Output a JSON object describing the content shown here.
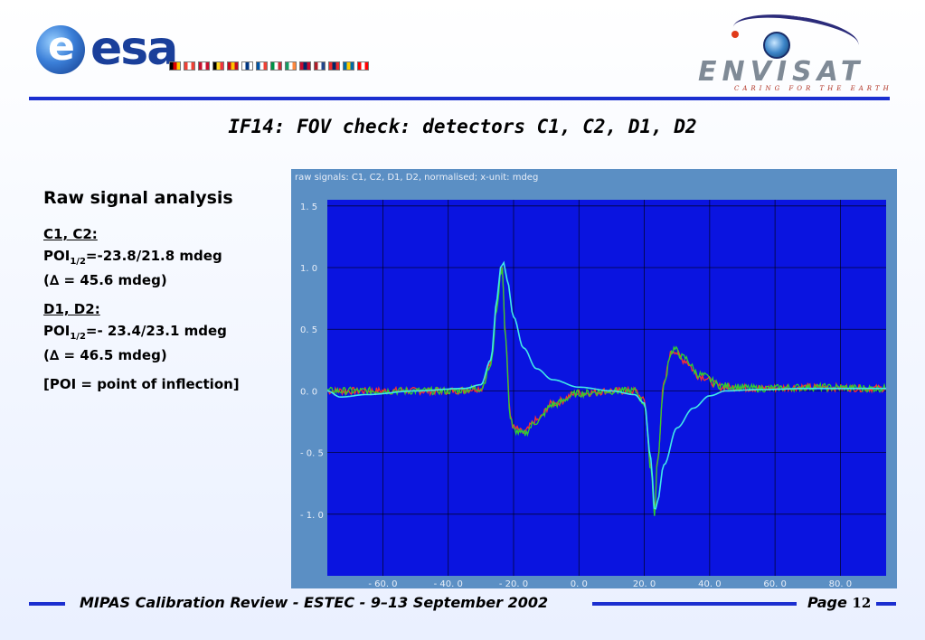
{
  "header": {
    "esa_logo_text": "esa",
    "esa_logo_letter": "e",
    "envisat_logo_text": "ENVISAT",
    "envisat_tagline": "CARING FOR THE EARTH",
    "flag_colors": [
      [
        "#000000",
        "#dd0000",
        "#ffce00"
      ],
      [
        "#ef4135",
        "#ffffff",
        "#ef4135"
      ],
      [
        "#c8102e",
        "#ffffff",
        "#c8102e"
      ],
      [
        "#000000",
        "#fdda24",
        "#ef3340"
      ],
      [
        "#c60b1e",
        "#ffc400",
        "#c60b1e"
      ],
      [
        "#ffffff",
        "#003580",
        "#ffffff"
      ],
      [
        "#0055a4",
        "#ffffff",
        "#ef4135"
      ],
      [
        "#009246",
        "#ffffff",
        "#ce2b37"
      ],
      [
        "#169b62",
        "#ffffff",
        "#ff883e"
      ],
      [
        "#c60c30",
        "#002868",
        "#c60c30"
      ],
      [
        "#ae1c28",
        "#ffffff",
        "#21468b"
      ],
      [
        "#ef2b2d",
        "#002868",
        "#ef2b2d"
      ],
      [
        "#006aa7",
        "#fecc00",
        "#006aa7"
      ],
      [
        "#ff0000",
        "#ffffff",
        "#ff0000"
      ]
    ]
  },
  "title": "IF14: FOV check: detectors C1, C2, D1, D2",
  "left": {
    "heading": "Raw signal analysis",
    "c_group": {
      "label": "C1, C2:",
      "poi_prefix": "POI",
      "poi_sub": "1/2",
      "poi_value": "=-23.8/21.8 mdeg",
      "delta": "(∆ = 45.6 mdeg)"
    },
    "d_group": {
      "label": "D1, D2:",
      "poi_prefix": "POI",
      "poi_sub": "1/2",
      "poi_value": "=- 23.4/23.1 mdeg",
      "delta": "(∆ = 46.5 mdeg)"
    },
    "poi_definition": "[POI = point of inflection]"
  },
  "chart_data": {
    "type": "line",
    "title": "raw signals: C1, C2, D1, D2, normalised; x-unit: mdeg",
    "xlabel": "",
    "ylabel": "",
    "xlim": [
      -77,
      94
    ],
    "ylim": [
      -1.5,
      1.55
    ],
    "x_ticks": [
      -60,
      -40,
      -20,
      0,
      20,
      40,
      60,
      80
    ],
    "x_tick_labels": [
      "- 60. 0",
      "- 40. 0",
      "- 20. 0",
      "0. 0",
      "20. 0",
      "40. 0",
      "60. 0",
      "80. 0"
    ],
    "y_ticks": [
      1.5,
      1.0,
      0.5,
      0.0,
      -0.5,
      -1.0
    ],
    "y_tick_labels": [
      "1. 5",
      "1. 0",
      "0. 5",
      "0. 0",
      "- 0. 5",
      "- 1. 0"
    ],
    "grid": true,
    "background": "#0a14e0",
    "series": [
      {
        "color": "#ff3030",
        "noise": 0.02,
        "x": [
          -77,
          -40,
          -30,
          -27,
          -25,
          -24,
          -23.5,
          -22.5,
          -21,
          -20,
          -17,
          -13,
          -8,
          0,
          10,
          17,
          20,
          22,
          23.2,
          24,
          26,
          28,
          29,
          32,
          37,
          44,
          55,
          70,
          94
        ],
        "y": [
          0.0,
          0.0,
          0.02,
          0.22,
          0.7,
          0.98,
          1.02,
          0.45,
          -0.2,
          -0.3,
          -0.34,
          -0.24,
          -0.1,
          -0.02,
          0.0,
          0.0,
          -0.08,
          -0.6,
          -0.98,
          -0.55,
          0.05,
          0.3,
          0.33,
          0.25,
          0.12,
          0.03,
          0.02,
          0.03,
          0.02
        ]
      },
      {
        "color": "#30d030",
        "noise": 0.02,
        "x": [
          -77,
          -40,
          -30,
          -27,
          -25,
          -24,
          -23.5,
          -22.5,
          -21,
          -20,
          -17,
          -13,
          -8,
          0,
          10,
          17,
          20,
          22,
          23.2,
          24,
          26,
          28,
          29,
          32,
          37,
          44,
          55,
          70,
          94
        ],
        "y": [
          0.0,
          0.0,
          0.02,
          0.2,
          0.68,
          0.96,
          1.0,
          0.42,
          -0.22,
          -0.32,
          -0.35,
          -0.25,
          -0.11,
          -0.02,
          0.0,
          0.0,
          -0.1,
          -0.62,
          -1.0,
          -0.57,
          0.04,
          0.3,
          0.34,
          0.27,
          0.13,
          0.04,
          0.02,
          0.03,
          0.02
        ]
      },
      {
        "color": "#40e8e8",
        "noise": 0.0,
        "x": [
          -77,
          -73,
          -65,
          -50,
          -35,
          -30,
          -27,
          -25,
          -24,
          -23,
          -22,
          -20,
          -17,
          -13,
          -8,
          0,
          10,
          17,
          20,
          22,
          23.2,
          24,
          26,
          30,
          35,
          40,
          45,
          55,
          70,
          94
        ],
        "y": [
          0.0,
          -0.05,
          -0.03,
          0.0,
          0.02,
          0.05,
          0.25,
          0.75,
          1.0,
          1.04,
          0.9,
          0.6,
          0.35,
          0.18,
          0.09,
          0.03,
          0.0,
          -0.03,
          -0.1,
          -0.55,
          -0.98,
          -0.9,
          -0.6,
          -0.3,
          -0.14,
          -0.04,
          0.0,
          0.01,
          0.02,
          0.02
        ]
      }
    ]
  },
  "footer": {
    "text": "MIPAS Calibration Review - ESTEC - 9–13 September  2002",
    "page_label": "Page",
    "page_number": "12"
  }
}
